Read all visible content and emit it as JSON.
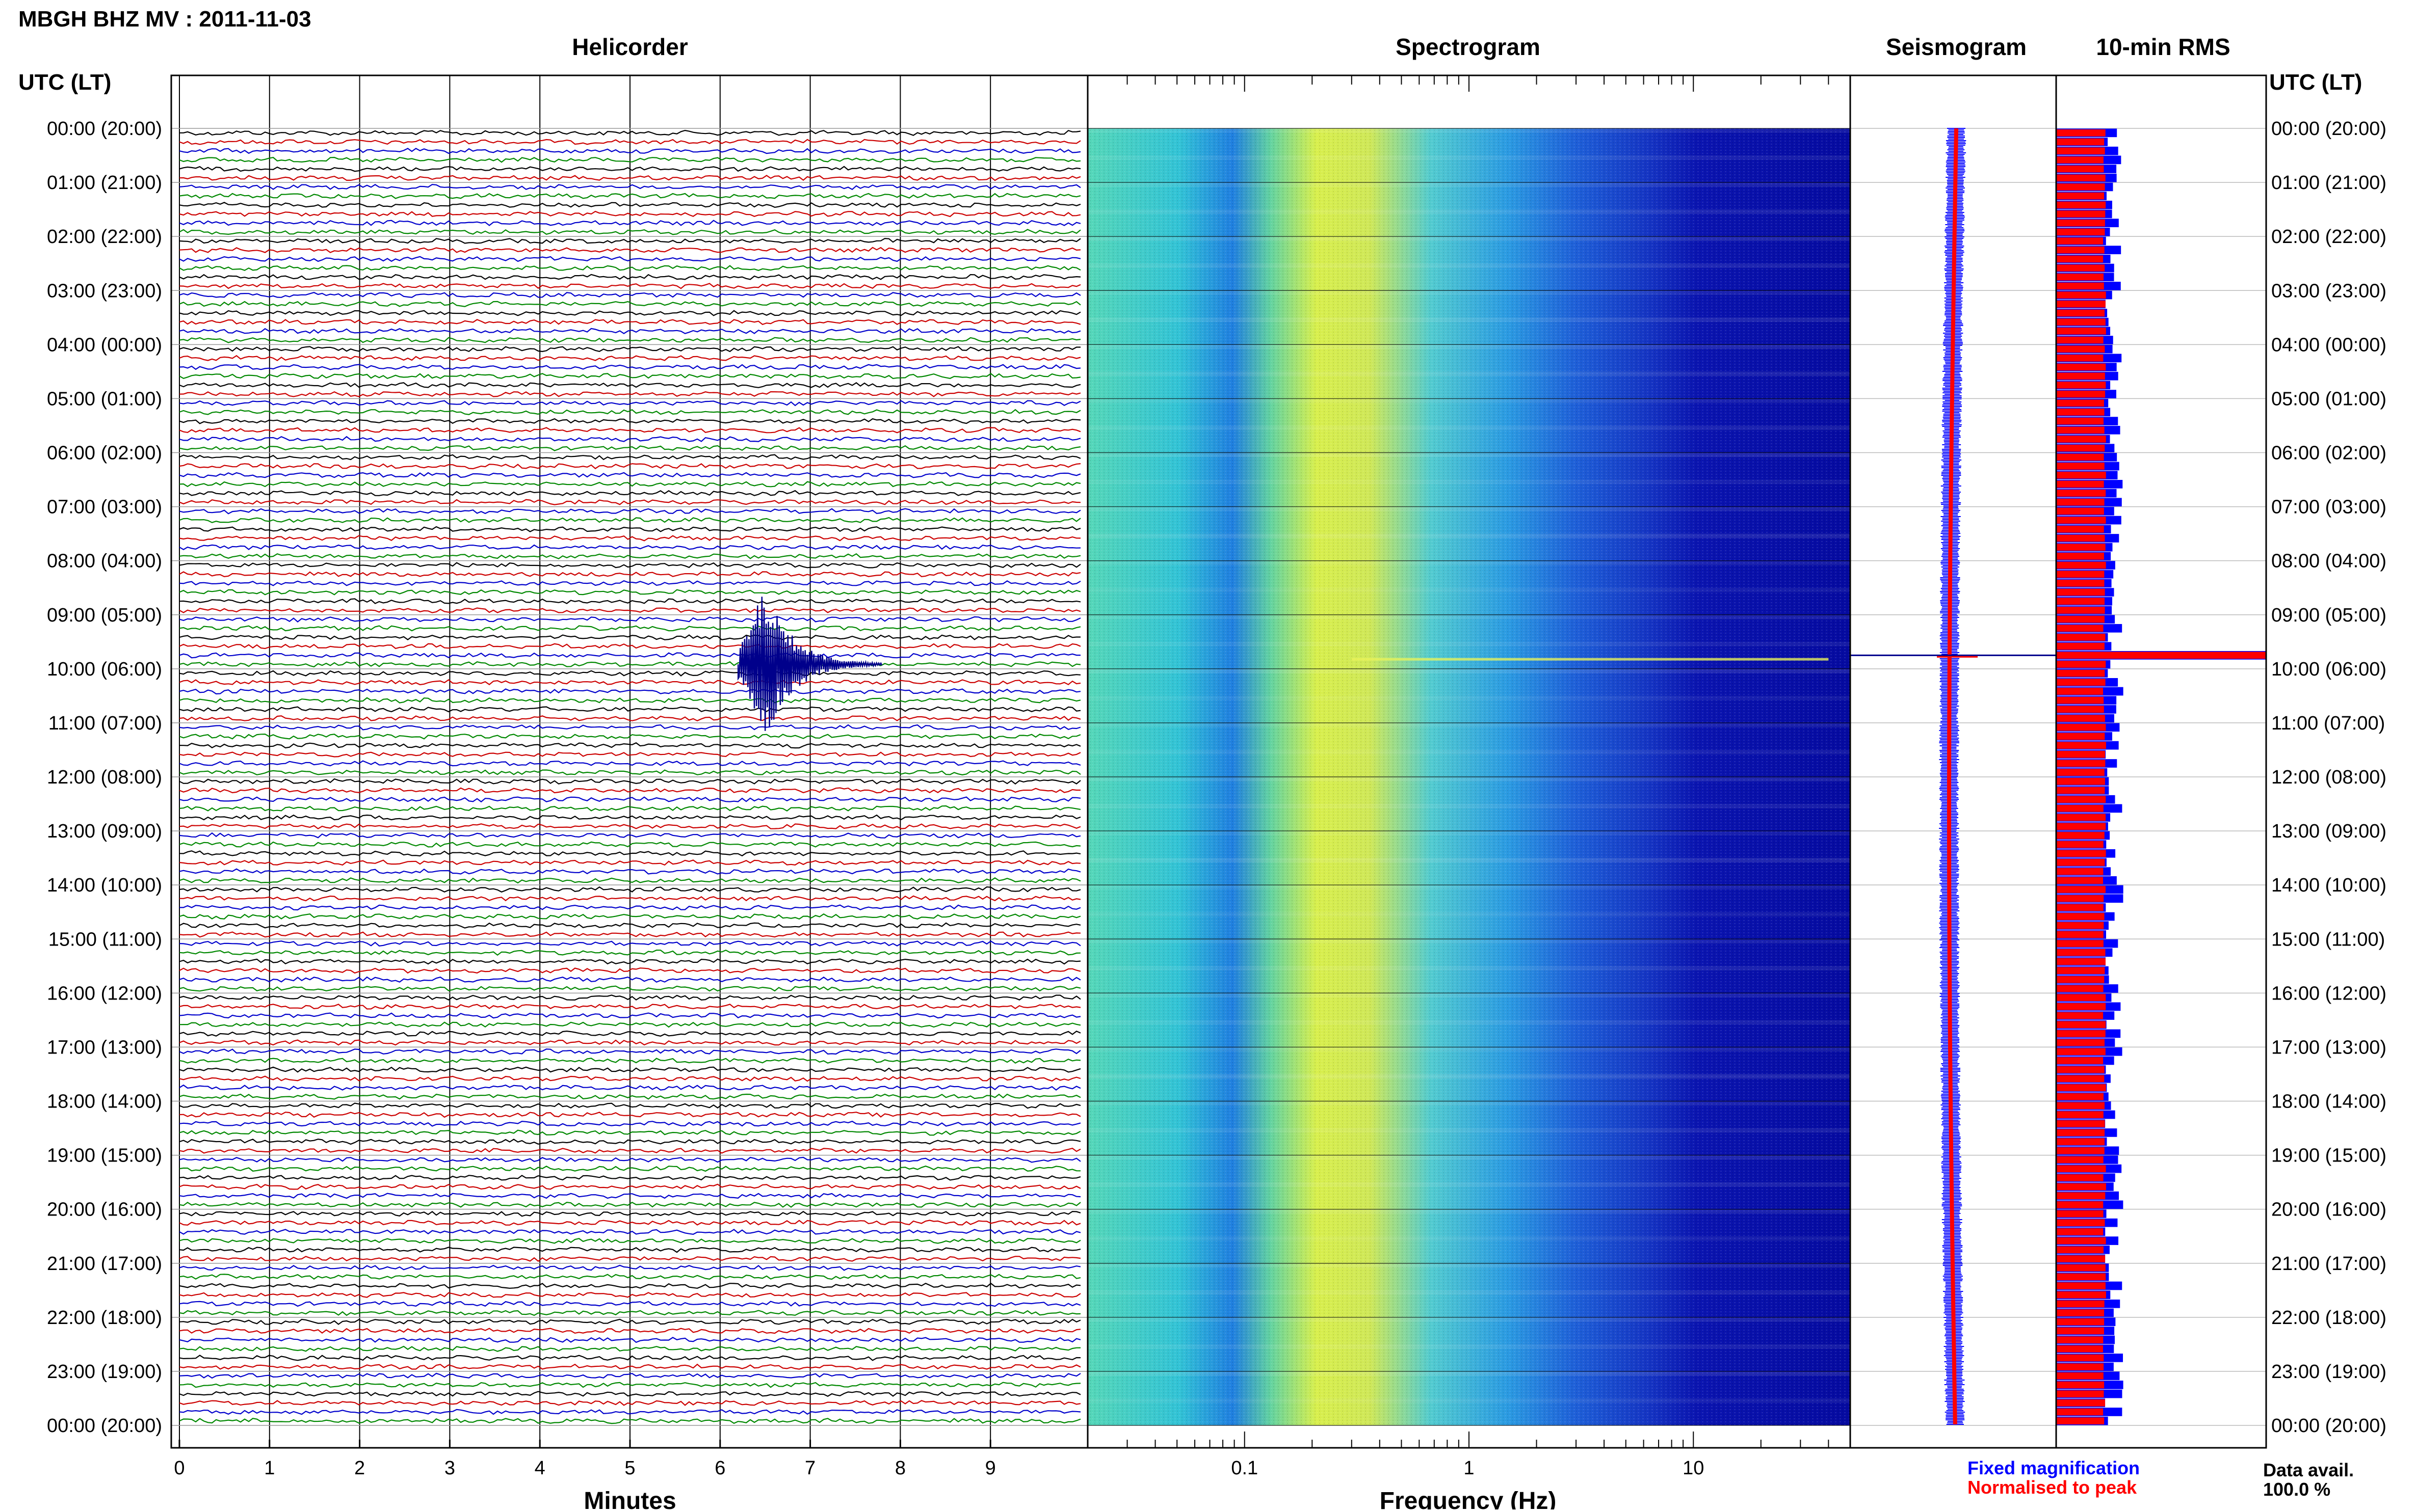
{
  "header": {
    "title": "MBGH BHZ MV : 2011-11-03",
    "utc_left": "UTC (LT)",
    "utc_right": "UTC (LT)"
  },
  "panels": {
    "helicorder": "Helicorder",
    "spectrogram": "Spectrogram",
    "seismogram": "Seismogram",
    "rms": "10-min RMS"
  },
  "time_labels": [
    "00:00 (20:00)",
    "01:00 (21:00)",
    "02:00 (22:00)",
    "03:00 (23:00)",
    "04:00 (00:00)",
    "05:00 (01:00)",
    "06:00 (02:00)",
    "07:00 (03:00)",
    "08:00 (04:00)",
    "09:00 (05:00)",
    "10:00 (06:00)",
    "11:00 (07:00)",
    "12:00 (08:00)",
    "13:00 (09:00)",
    "14:00 (10:00)",
    "15:00 (11:00)",
    "16:00 (12:00)",
    "17:00 (13:00)",
    "18:00 (14:00)",
    "19:00 (15:00)",
    "20:00 (16:00)",
    "21:00 (17:00)",
    "22:00 (18:00)",
    "23:00 (19:00)",
    "00:00 (20:00)"
  ],
  "helicorder_axis": {
    "xlabel": "Minutes",
    "ticks": [
      "0",
      "1",
      "2",
      "3",
      "4",
      "5",
      "6",
      "7",
      "8",
      "9"
    ]
  },
  "spectrogram_axis": {
    "xlabel": "Frequency (Hz)",
    "ticks": [
      "0.1",
      "1",
      "10"
    ],
    "scale": "log",
    "xlim": [
      0.02,
      50
    ]
  },
  "legend": {
    "fixed": "Fixed magnification",
    "normalised": "Normalised to peak",
    "fixed_color": "#0000ff",
    "normalised_color": "#ff0000"
  },
  "data_avail": {
    "label": "Data avail.",
    "value": "100.0 %"
  },
  "colors": {
    "trace_cycle": [
      "#000000",
      "#cc0000",
      "#0000cc",
      "#008800"
    ],
    "event": "#00008b",
    "rms_fixed": "#0000ff",
    "rms_normalised": "#ff0000"
  },
  "chart_data": [
    {
      "type": "line",
      "name": "helicorder",
      "x_unit": "minutes",
      "xlim": [
        0,
        10
      ],
      "rows_per_hour": 6,
      "hours": 24,
      "event": {
        "hour_utc": 9,
        "minute_row": 5,
        "start_minute": 6.2,
        "peak_minute": 6.5,
        "end_minute": 7.8
      }
    },
    {
      "type": "heatmap",
      "name": "spectrogram",
      "x_scale": "log",
      "xlim": [
        0.02,
        50
      ],
      "peak_band_hz": [
        0.2,
        0.5
      ],
      "event_row_hour_utc": 9.8
    },
    {
      "type": "bar",
      "name": "rms",
      "rows": 144,
      "event_row": 58
    }
  ]
}
